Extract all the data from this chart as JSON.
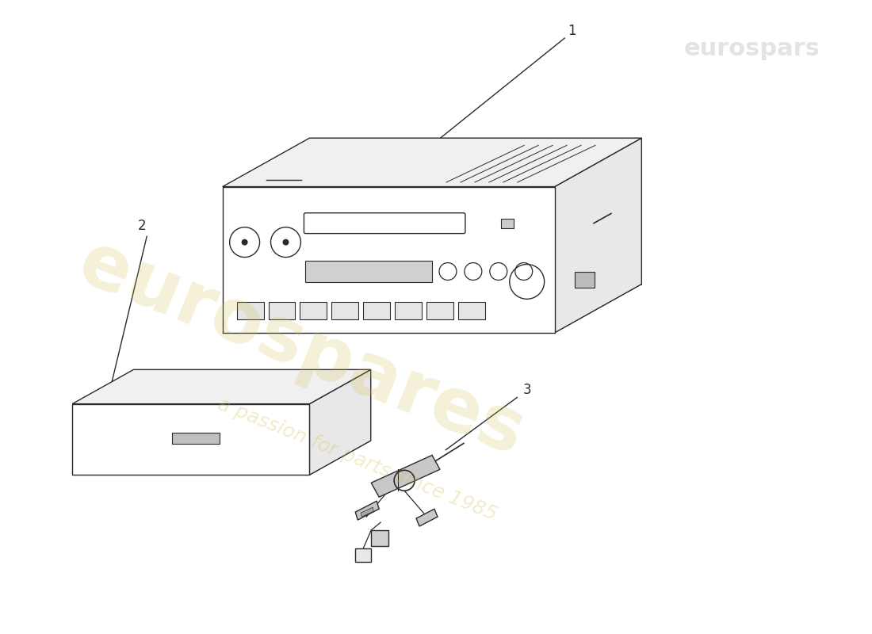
{
  "background_color": "#ffffff",
  "line_color": "#2a2a2a",
  "face_fill": "#ffffff",
  "top_fill": "#f0f0f0",
  "side_fill": "#e8e8e8",
  "watermark_color": "#d4c050",
  "watermark_alpha1": 0.22,
  "watermark_alpha2": 0.3,
  "wm1_text": "eurospares",
  "wm2_text": "a passion for parts since 1985",
  "label1": "1",
  "label2": "2",
  "label3": "3"
}
